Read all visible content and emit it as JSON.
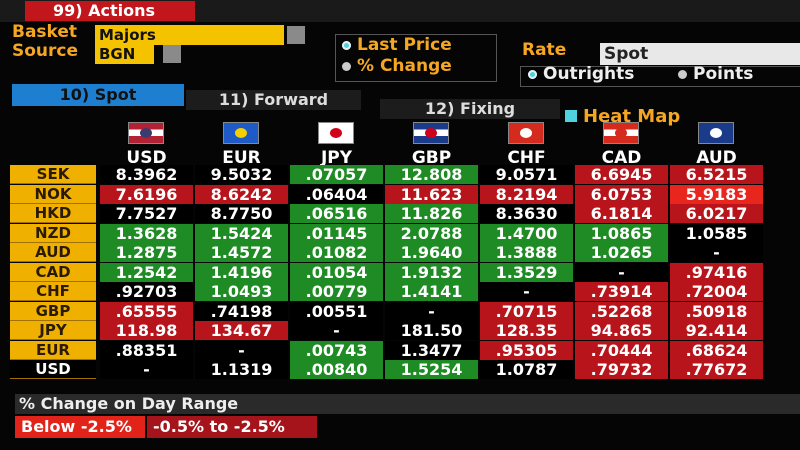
{
  "toolbar": {
    "actions": "99) Actions",
    "basket_label": "Basket",
    "basket": "Majors",
    "source_label": "Source",
    "source": "BGN",
    "price_options": [
      "Last Price",
      "% Change"
    ],
    "rate_label": "Rate",
    "rate": "Spot",
    "rate_options": [
      "Outrights",
      "Points"
    ]
  },
  "tabs": [
    "10) Spot",
    "11) Forward",
    "12) Fixing"
  ],
  "heat_map": "Heat Map",
  "table": {
    "columns": [
      "USD",
      "EUR",
      "JPY",
      "GBP",
      "CHF",
      "CAD",
      "AUD"
    ],
    "rows": [
      {
        "label": "SEK",
        "cells": [
          "8.3962",
          "9.5032",
          ".07057",
          "12.808",
          "9.0571",
          "6.6945",
          "6.5215"
        ],
        "colors": [
          "#000000",
          "#000000",
          "#1f8b24",
          "#1f8b24",
          "#000000",
          "#b8141b",
          "#b8141b"
        ]
      },
      {
        "label": "NOK",
        "cells": [
          "7.6196",
          "8.6242",
          ".06404",
          "11.623",
          "8.2194",
          "6.0753",
          "5.9183"
        ],
        "colors": [
          "#b8141b",
          "#b8141b",
          "#000000",
          "#b8141b",
          "#b8141b",
          "#b8141b",
          "#e8261e"
        ]
      },
      {
        "label": "HKD",
        "cells": [
          "7.7527",
          "8.7750",
          ".06516",
          "11.826",
          "8.3630",
          "6.1814",
          "6.0217"
        ],
        "colors": [
          "#000000",
          "#000000",
          "#1f8b24",
          "#1f8b24",
          "#000000",
          "#b8141b",
          "#b8141b"
        ]
      },
      {
        "label": "NZD",
        "cells": [
          "1.3628",
          "1.5424",
          ".01145",
          "2.0788",
          "1.4700",
          "1.0865",
          "1.0585"
        ],
        "colors": [
          "#1f8b24",
          "#1f8b24",
          "#1f8b24",
          "#1f8b24",
          "#1f8b24",
          "#1f8b24",
          "#000000"
        ]
      },
      {
        "label": "AUD",
        "cells": [
          "1.2875",
          "1.4572",
          ".01082",
          "1.9640",
          "1.3888",
          "1.0265",
          "-"
        ],
        "colors": [
          "#1f8b24",
          "#1f8b24",
          "#1f8b24",
          "#1f8b24",
          "#1f8b24",
          "#1f8b24",
          "#000000"
        ]
      },
      {
        "label": "CAD",
        "cells": [
          "1.2542",
          "1.4196",
          ".01054",
          "1.9132",
          "1.3529",
          "-",
          ".97416"
        ],
        "colors": [
          "#1f8b24",
          "#1f8b24",
          "#1f8b24",
          "#1f8b24",
          "#1f8b24",
          "#000000",
          "#b8141b"
        ]
      },
      {
        "label": "CHF",
        "cells": [
          ".92703",
          "1.0493",
          ".00779",
          "1.4141",
          "-",
          ".73914",
          ".72004"
        ],
        "colors": [
          "#000000",
          "#1f8b24",
          "#1f8b24",
          "#1f8b24",
          "#000000",
          "#b8141b",
          "#b8141b"
        ]
      },
      {
        "label": "GBP",
        "cells": [
          ".65555",
          ".74198",
          ".00551",
          "-",
          ".70715",
          ".52268",
          ".50918"
        ],
        "colors": [
          "#b8141b",
          "#000000",
          "#000000",
          "#000000",
          "#b8141b",
          "#b8141b",
          "#b8141b"
        ]
      },
      {
        "label": "JPY",
        "cells": [
          "118.98",
          "134.67",
          "-",
          "181.50",
          "128.35",
          "94.865",
          "92.414"
        ],
        "colors": [
          "#b8141b",
          "#b8141b",
          "#000000",
          "#000000",
          "#b8141b",
          "#b8141b",
          "#b8141b"
        ]
      },
      {
        "label": "EUR",
        "cells": [
          ".88351",
          "-",
          ".00743",
          "1.3477",
          ".95305",
          ".70444",
          ".68624"
        ],
        "colors": [
          "#000000",
          "#000000",
          "#1f8b24",
          "#000000",
          "#b8141b",
          "#b8141b",
          "#b8141b"
        ]
      },
      {
        "label": "USD",
        "cells": [
          "-",
          "1.1319",
          ".00840",
          "1.5254",
          "1.0787",
          ".79732",
          ".77672"
        ],
        "colors": [
          "#000000",
          "#000000",
          "#1f8b24",
          "#1f8b24",
          "#000000",
          "#b8141b",
          "#b8141b"
        ]
      }
    ]
  },
  "legend": {
    "title": "% Change on Day Range",
    "items": [
      "Below -2.5%",
      "-0.5% to -2.5%"
    ]
  }
}
